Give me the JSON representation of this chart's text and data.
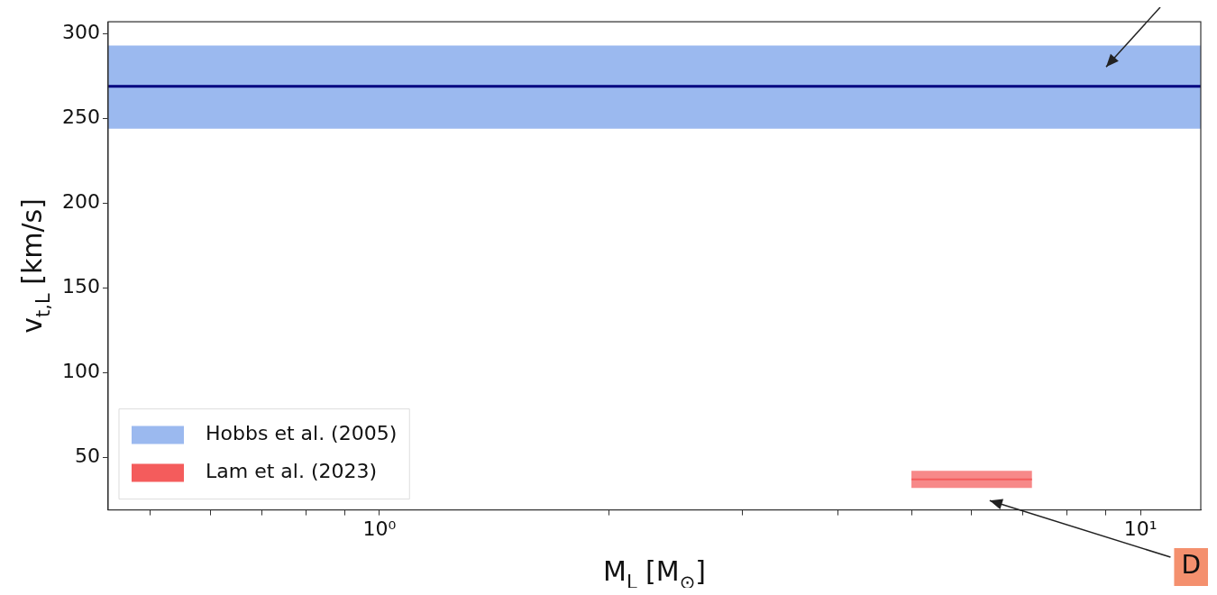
{
  "chart_data": {
    "type": "line",
    "xlabel": "M$_{L}$ [M$_{⊙}$]",
    "ylabel": "v$_{t,L}$ [km/s]",
    "log": "x",
    "xlim": [
      0.44,
      12.0
    ],
    "xticks": [
      {
        "value": 0.5,
        "label": null
      },
      {
        "value": 0.6,
        "label": null
      },
      {
        "value": 0.7,
        "label": null
      },
      {
        "value": 0.8,
        "label": null
      },
      {
        "value": 0.9,
        "label": null
      },
      {
        "value": 1,
        "label": "10⁰"
      },
      {
        "value": 2,
        "label": null
      },
      {
        "value": 3,
        "label": null
      },
      {
        "value": 4,
        "label": null
      },
      {
        "value": 5,
        "label": null
      },
      {
        "value": 6,
        "label": null
      },
      {
        "value": 7,
        "label": null
      },
      {
        "value": 8,
        "label": null
      },
      {
        "value": 9,
        "label": null
      },
      {
        "value": 10,
        "label": "10¹"
      }
    ],
    "ylim": [
      19,
      307
    ],
    "yticks": [
      50,
      100,
      150,
      200,
      250,
      300
    ],
    "grid": false,
    "legend": "bottom left",
    "bands": [
      {
        "axis": "y",
        "from": 244,
        "to": 293,
        "label": "Hobbs et al. (2005)",
        "color": "#9bb9ef"
      }
    ],
    "ref_lines": [
      {
        "axis": "y",
        "value": 269,
        "color": "#00007f"
      }
    ],
    "series": [
      {
        "name": "Lam et al. (2023)",
        "color": "#f45c5c",
        "x": [
          5.0,
          7.2
        ],
        "values": [
          37,
          37
        ],
        "lower": [
          32,
          32
        ],
        "upper": [
          42,
          42
        ]
      }
    ],
    "annotations": [
      "D"
    ]
  }
}
